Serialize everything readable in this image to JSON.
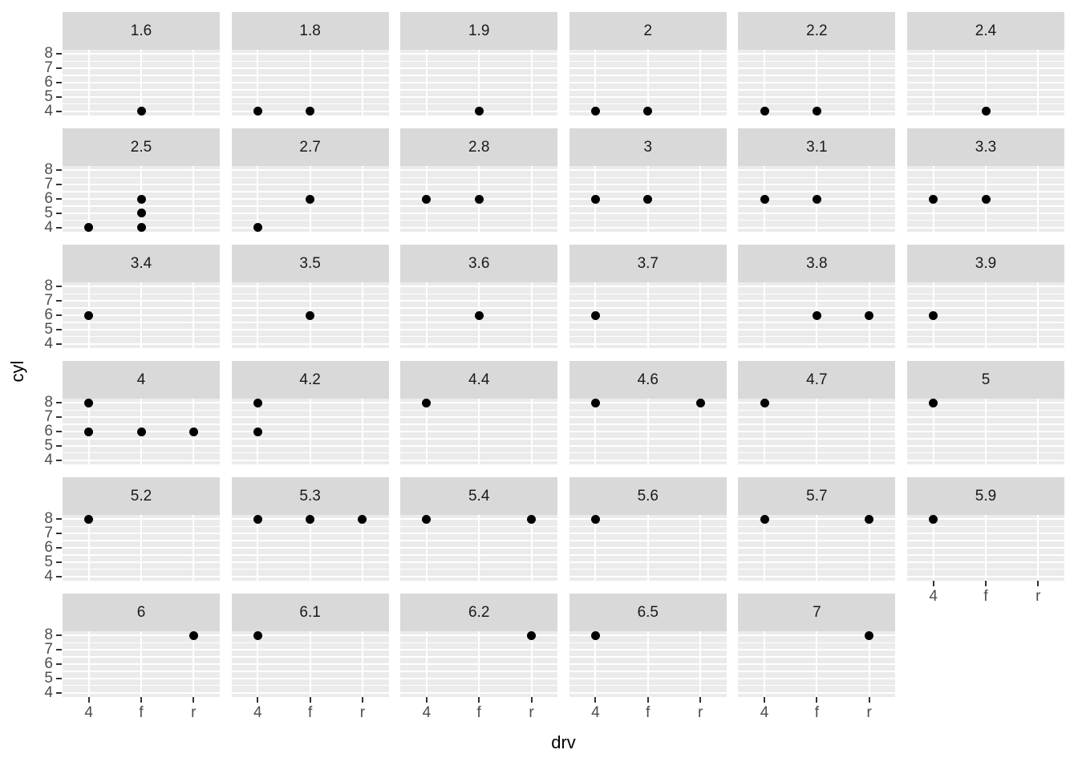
{
  "colors": {
    "background": "#ffffff",
    "strip_fill": "#d9d9d9",
    "panel_fill": "#ebebeb",
    "gridline": "#ffffff",
    "strip_text": "#1a1a1a",
    "tick_label": "#4d4d4d",
    "tick_mark": "#333333",
    "point": "#000000",
    "axis_title": "#000000"
  },
  "chart_data": {
    "type": "scatter",
    "title": "",
    "xlabel": "drv",
    "ylabel": "cyl",
    "facet_variable": "displ",
    "x_categories": [
      "4",
      "f",
      "r"
    ],
    "y_ticks": [
      4,
      5,
      6,
      7,
      8
    ],
    "y_minor_ticks": [
      4.5,
      5.5,
      6.5,
      7.5
    ],
    "y_range": [
      3.7,
      8.3
    ],
    "grid": true,
    "legend": "none",
    "facet_columns": 6,
    "facets": [
      {
        "label": "1.6",
        "points": [
          [
            "f",
            4
          ]
        ]
      },
      {
        "label": "1.8",
        "points": [
          [
            "4",
            4
          ],
          [
            "f",
            4
          ]
        ]
      },
      {
        "label": "1.9",
        "points": [
          [
            "f",
            4
          ]
        ]
      },
      {
        "label": "2",
        "points": [
          [
            "4",
            4
          ],
          [
            "f",
            4
          ]
        ]
      },
      {
        "label": "2.2",
        "points": [
          [
            "4",
            4
          ],
          [
            "f",
            4
          ]
        ]
      },
      {
        "label": "2.4",
        "points": [
          [
            "f",
            4
          ]
        ]
      },
      {
        "label": "2.5",
        "points": [
          [
            "4",
            4
          ],
          [
            "f",
            4
          ],
          [
            "f",
            5
          ],
          [
            "f",
            6
          ]
        ]
      },
      {
        "label": "2.7",
        "points": [
          [
            "4",
            4
          ],
          [
            "f",
            6
          ]
        ]
      },
      {
        "label": "2.8",
        "points": [
          [
            "4",
            6
          ],
          [
            "f",
            6
          ]
        ]
      },
      {
        "label": "3",
        "points": [
          [
            "4",
            6
          ],
          [
            "f",
            6
          ]
        ]
      },
      {
        "label": "3.1",
        "points": [
          [
            "4",
            6
          ],
          [
            "f",
            6
          ]
        ]
      },
      {
        "label": "3.3",
        "points": [
          [
            "4",
            6
          ],
          [
            "f",
            6
          ]
        ]
      },
      {
        "label": "3.4",
        "points": [
          [
            "4",
            6
          ]
        ]
      },
      {
        "label": "3.5",
        "points": [
          [
            "f",
            6
          ]
        ]
      },
      {
        "label": "3.6",
        "points": [
          [
            "f",
            6
          ]
        ]
      },
      {
        "label": "3.7",
        "points": [
          [
            "4",
            6
          ]
        ]
      },
      {
        "label": "3.8",
        "points": [
          [
            "f",
            6
          ],
          [
            "r",
            6
          ]
        ]
      },
      {
        "label": "3.9",
        "points": [
          [
            "4",
            6
          ]
        ]
      },
      {
        "label": "4",
        "points": [
          [
            "4",
            8
          ],
          [
            "4",
            6
          ],
          [
            "f",
            6
          ],
          [
            "r",
            6
          ]
        ]
      },
      {
        "label": "4.2",
        "points": [
          [
            "4",
            8
          ],
          [
            "4",
            6
          ]
        ]
      },
      {
        "label": "4.4",
        "points": [
          [
            "4",
            8
          ]
        ]
      },
      {
        "label": "4.6",
        "points": [
          [
            "4",
            8
          ],
          [
            "r",
            8
          ]
        ]
      },
      {
        "label": "4.7",
        "points": [
          [
            "4",
            8
          ]
        ]
      },
      {
        "label": "5",
        "points": [
          [
            "4",
            8
          ]
        ]
      },
      {
        "label": "5.2",
        "points": [
          [
            "4",
            8
          ]
        ]
      },
      {
        "label": "5.3",
        "points": [
          [
            "4",
            8
          ],
          [
            "f",
            8
          ],
          [
            "r",
            8
          ]
        ]
      },
      {
        "label": "5.4",
        "points": [
          [
            "4",
            8
          ],
          [
            "r",
            8
          ]
        ]
      },
      {
        "label": "5.6",
        "points": [
          [
            "4",
            8
          ]
        ]
      },
      {
        "label": "5.7",
        "points": [
          [
            "4",
            8
          ],
          [
            "r",
            8
          ]
        ]
      },
      {
        "label": "5.9",
        "points": [
          [
            "4",
            8
          ]
        ]
      },
      {
        "label": "6",
        "points": [
          [
            "r",
            8
          ]
        ]
      },
      {
        "label": "6.1",
        "points": [
          [
            "4",
            8
          ]
        ]
      },
      {
        "label": "6.2",
        "points": [
          [
            "r",
            8
          ]
        ]
      },
      {
        "label": "6.5",
        "points": [
          [
            "4",
            8
          ]
        ]
      },
      {
        "label": "7",
        "points": [
          [
            "r",
            8
          ]
        ]
      }
    ]
  }
}
